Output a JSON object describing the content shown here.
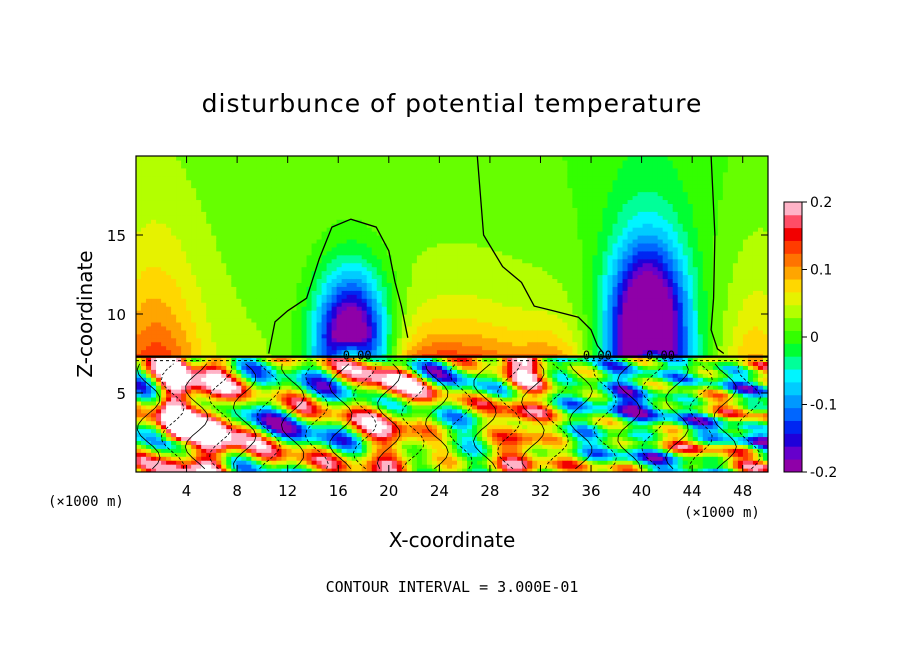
{
  "chart_data": {
    "type": "heatmap",
    "title": "disturbunce of potential temperature",
    "xlabel": "X-coordinate",
    "ylabel": "Z-coordinate",
    "x_unit": "(×1000 m)",
    "y_unit": "(×1000 m)",
    "xlim": [
      0,
      50
    ],
    "ylim": [
      0,
      20
    ],
    "x_ticks": [
      4,
      8,
      12,
      16,
      20,
      24,
      28,
      32,
      36,
      40,
      44,
      48
    ],
    "y_ticks": [
      5,
      10,
      15
    ],
    "colorbar": {
      "range": [
        -0.2,
        0.2
      ],
      "tick_values": [
        0.2,
        0.1,
        0,
        -0.1,
        -0.2
      ],
      "tick_labels": [
        "0.2",
        "0.1",
        "0",
        "-0.1",
        "-0.2"
      ]
    },
    "contour_labels": [
      {
        "text": "0.00",
        "x": 17.5,
        "y": 7.3
      },
      {
        "text": "0.00",
        "x": 36.5,
        "y": 7.3
      },
      {
        "text": "0.00",
        "x": 41.5,
        "y": 7.3
      }
    ],
    "footer": "CONTOUR INTERVAL = 3.000E-01"
  },
  "colors": {
    "palette": [
      "#8f00a8",
      "#6600cc",
      "#1f00d9",
      "#0026f2",
      "#0066ff",
      "#0099ff",
      "#00ccff",
      "#00f5ff",
      "#00ff99",
      "#00ff33",
      "#33ff00",
      "#66ff00",
      "#b3ff00",
      "#e6f200",
      "#ffd700",
      "#ffa500",
      "#ff7300",
      "#ff3c00",
      "#f20000",
      "#ff4d66",
      "#ffb3c7"
    ]
  }
}
